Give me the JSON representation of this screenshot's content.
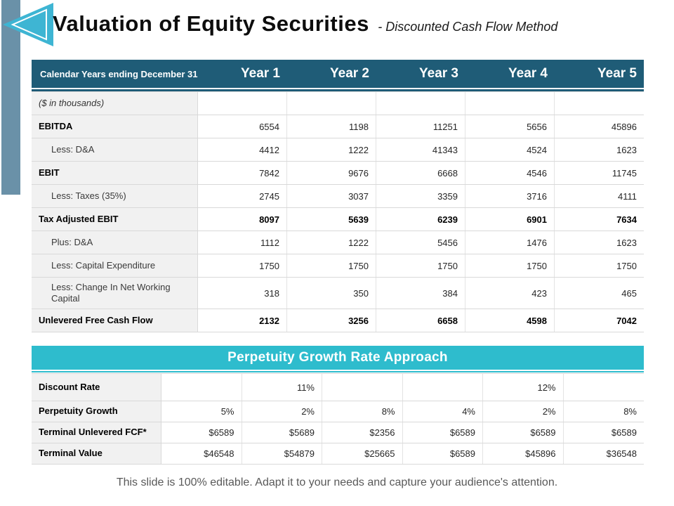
{
  "slide": {
    "title": "Valuation of Equity Securities",
    "subtitle": "- Discounted Cash Flow Method",
    "footer": "This slide is 100% editable. Adapt it to your needs and capture your audience's attention."
  },
  "colors": {
    "header_dark_teal": "#1F5C77",
    "band_cyan": "#2EBCCD",
    "arrow_cyan": "#3EB5D3",
    "side_bar_slate": "#6A91A8",
    "label_column_bg": "#F1F1F1",
    "grid_border": "#D9D9D9",
    "footer_text": "#595959"
  },
  "icons": {
    "logo": "left-arrow-icon"
  },
  "dcf_table": {
    "header_label": "Calendar Years ending December 31",
    "year_headers": [
      "Year 1",
      "Year 2",
      "Year 3",
      "Year 4",
      "Year 5"
    ],
    "rows": [
      {
        "label": "($ in thousands)",
        "style": "note",
        "values": [
          "",
          "",
          "",
          "",
          ""
        ]
      },
      {
        "label": "EBITDA",
        "style": "bold-label",
        "values": [
          "6554",
          "1198",
          "11251",
          "5656",
          "45896"
        ]
      },
      {
        "label": "Less: D&A",
        "style": "indent",
        "values": [
          "4412",
          "1222",
          "41343",
          "4524",
          "1623"
        ]
      },
      {
        "label": "EBIT",
        "style": "bold-label",
        "values": [
          "7842",
          "9676",
          "6668",
          "4546",
          "11745"
        ]
      },
      {
        "label": "Less: Taxes (35%)",
        "style": "indent",
        "values": [
          "2745",
          "3037",
          "3359",
          "3716",
          "4111"
        ]
      },
      {
        "label": "Tax Adjusted EBIT",
        "style": "bold-all",
        "values": [
          "8097",
          "5639",
          "6239",
          "6901",
          "7634"
        ]
      },
      {
        "label": "Plus: D&A",
        "style": "indent",
        "values": [
          "1112",
          "1222",
          "5456",
          "1476",
          "1623"
        ]
      },
      {
        "label": "Less: Capital Expenditure",
        "style": "indent",
        "values": [
          "1750",
          "1750",
          "1750",
          "1750",
          "1750"
        ]
      },
      {
        "label": "Less: Change In Net Working Capital",
        "style": "indent tall",
        "values": [
          "318",
          "350",
          "384",
          "423",
          "465"
        ]
      },
      {
        "label": "Unlevered Free Cash Flow",
        "style": "bold-all",
        "values": [
          "2132",
          "3256",
          "6658",
          "4598",
          "7042"
        ]
      }
    ]
  },
  "perpetuity_table": {
    "band_title": "Perpetuity Growth Rate Approach",
    "rows": [
      {
        "label": "Discount Rate",
        "values": [
          "",
          "11%",
          "",
          "",
          "12%",
          ""
        ]
      },
      {
        "label": "Perpetuity Growth",
        "values": [
          "5%",
          "2%",
          "8%",
          "4%",
          "2%",
          "8%"
        ]
      },
      {
        "label": "Terminal Unlevered FCF*",
        "values": [
          "$6589",
          "$5689",
          "$2356",
          "$6589",
          "$6589",
          "$6589"
        ]
      },
      {
        "label": "Terminal Value",
        "values": [
          "$46548",
          "$54879",
          "$25665",
          "$6589",
          "$45896",
          "$36548"
        ]
      }
    ]
  }
}
